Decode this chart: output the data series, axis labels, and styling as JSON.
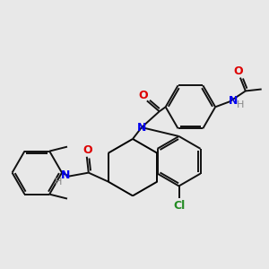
{
  "background_color": "#e8e8e8",
  "bond_color": "#111111",
  "N_color": "#0000ee",
  "O_color": "#dd0000",
  "Cl_color": "#228B22",
  "H_color": "#888888",
  "figsize": [
    3.0,
    3.0
  ],
  "dpi": 100,
  "xlim": [
    0,
    300
  ],
  "ylim": [
    0,
    300
  ]
}
